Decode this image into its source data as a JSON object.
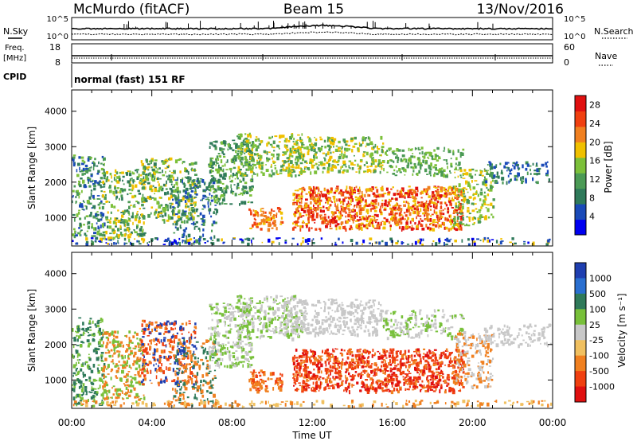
{
  "header": {
    "station": "McMurdo (fitACF)",
    "beam": "Beam 15",
    "date": "13/Nov/2016"
  },
  "noise_panel": {
    "left_label": "N.Sky",
    "right_label": "N.Search",
    "left_ticks": [
      "10^5",
      "10^0"
    ],
    "right_ticks": [
      "10^5",
      "10^0"
    ]
  },
  "freq_panel": {
    "left_label_1": "Freq.",
    "left_label_2": "[MHz]",
    "left_ticks": [
      "18",
      "8"
    ],
    "right_label": "Nave",
    "right_ticks": [
      "60",
      "0"
    ]
  },
  "cpid": {
    "label": "CPID",
    "value": "normal (fast) 151 RF"
  },
  "colors": {
    "power_scale": [
      "#0000f0",
      "#1a4ab8",
      "#2f7a5a",
      "#4b9a55",
      "#7cc03a",
      "#f0c000",
      "#f08020",
      "#f04010",
      "#e01010"
    ],
    "velocity_scale": [
      "#1f3fb0",
      "#2a6fd0",
      "#2f7a5a",
      "#78c03a",
      "#c8c8c8",
      "#f0c060",
      "#f08020",
      "#f04010",
      "#e01010"
    ]
  },
  "chart_data": [
    {
      "type": "heatmap",
      "panel": "power",
      "xlabel": "Time UT",
      "ylabel": "Slant Range [km]",
      "x_ticks": [
        "00:00",
        "04:00",
        "08:00",
        "12:00",
        "16:00",
        "20:00",
        "00:00"
      ],
      "y_ticks": [
        1000,
        2000,
        3000,
        4000
      ],
      "ylim": [
        200,
        4600
      ],
      "xlim_hours": [
        0,
        24
      ],
      "colorbar": {
        "label": "Power [dB]",
        "ticks": [
          "4",
          "8",
          "12",
          "16",
          "20",
          "24",
          "28"
        ],
        "range": [
          0,
          30
        ]
      }
    },
    {
      "type": "heatmap",
      "panel": "velocity",
      "xlabel": "Time UT",
      "ylabel": "Slant Range [km]",
      "x_ticks": [
        "00:00",
        "04:00",
        "08:00",
        "12:00",
        "16:00",
        "20:00",
        "00:00"
      ],
      "y_ticks": [
        1000,
        2000,
        3000,
        4000
      ],
      "ylim": [
        200,
        4600
      ],
      "xlim_hours": [
        0,
        24
      ],
      "colorbar": {
        "label": "Velocity [m s⁻¹]",
        "ticks": [
          "1000",
          "500",
          "100",
          "25",
          "-25",
          "-100",
          "-500",
          "-1000"
        ]
      }
    }
  ]
}
